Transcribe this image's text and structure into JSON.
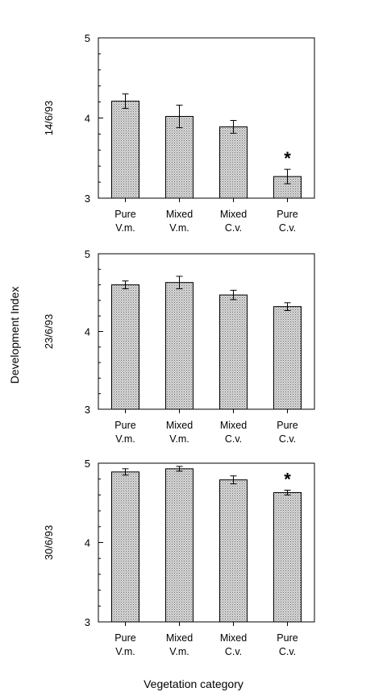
{
  "figure": {
    "ylabel": "Development Index",
    "xlabel": "Vegetation category"
  },
  "chart_data": [
    {
      "type": "bar",
      "panel_label": "14/6/93",
      "categories": [
        [
          "Pure",
          "V.m."
        ],
        [
          "Mixed",
          "V.m."
        ],
        [
          "Mixed",
          "C.v."
        ],
        [
          "Pure",
          "C.v."
        ]
      ],
      "values": [
        4.21,
        4.02,
        3.89,
        3.27
      ],
      "errors": [
        0.09,
        0.14,
        0.08,
        0.09
      ],
      "significance": [
        "",
        "",
        "",
        "*"
      ],
      "ylim": [
        3,
        5
      ],
      "yticks": [
        "3",
        "4",
        "5"
      ]
    },
    {
      "type": "bar",
      "panel_label": "23/6/93",
      "categories": [
        [
          "Pure",
          "V.m."
        ],
        [
          "Mixed",
          "V.m."
        ],
        [
          "Mixed",
          "C.v."
        ],
        [
          "Pure",
          "C.v."
        ]
      ],
      "values": [
        4.6,
        4.63,
        4.47,
        4.32
      ],
      "errors": [
        0.05,
        0.08,
        0.06,
        0.05
      ],
      "significance": [
        "",
        "",
        "",
        ""
      ],
      "ylim": [
        3,
        5
      ],
      "yticks": [
        "3",
        "4",
        "5"
      ]
    },
    {
      "type": "bar",
      "panel_label": "30/6/93",
      "categories": [
        [
          "Pure",
          "V.m."
        ],
        [
          "Mixed",
          "V.m."
        ],
        [
          "Mixed",
          "C.v."
        ],
        [
          "Pure",
          "C.v."
        ]
      ],
      "values": [
        4.89,
        4.93,
        4.79,
        4.63
      ],
      "errors": [
        0.04,
        0.03,
        0.05,
        0.03
      ],
      "significance": [
        "",
        "",
        "",
        "*"
      ],
      "ylim": [
        3,
        5
      ],
      "yticks": [
        "3",
        "4",
        "5"
      ]
    }
  ]
}
